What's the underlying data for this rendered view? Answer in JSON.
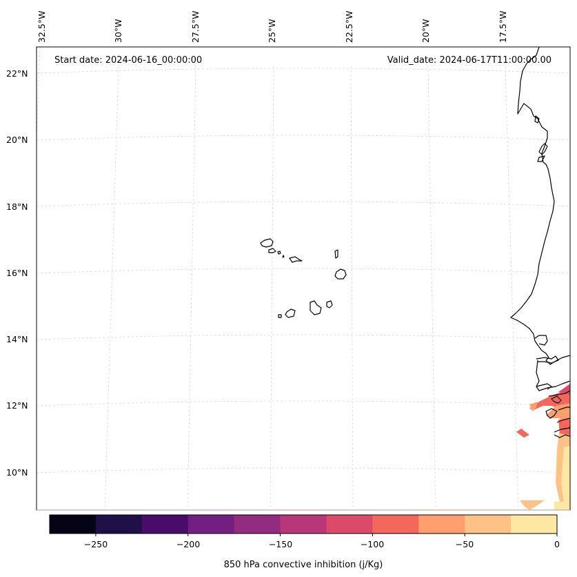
{
  "map": {
    "start_label": "Start date: 2024-06-16_00:00:00",
    "valid_label": "Valid_date: 2024-06-17T11:00:00.00",
    "lon_labels": [
      "32.5°W",
      "30°W",
      "27.5°W",
      "25°W",
      "22.5°W",
      "20°W",
      "17.5°W"
    ],
    "lat_labels": [
      "22°N",
      "20°N",
      "18°N",
      "16°N",
      "14°N",
      "12°N",
      "10°N"
    ],
    "coastline_color": "#000000",
    "gridline_color": "#d0d0d0"
  },
  "colorbar": {
    "title": "850 hPa convective inhibition (j/Kg)",
    "tick_labels": [
      "−250",
      "−200",
      "−150",
      "−100",
      "−50",
      "0"
    ],
    "boundaries": [
      -275,
      -250,
      -225,
      -200,
      -175,
      -150,
      -125,
      -100,
      -75,
      -50,
      -25,
      0
    ],
    "colors": [
      "#050416",
      "#1f1147",
      "#4a0c6b",
      "#721f81",
      "#932b80",
      "#b73779",
      "#dc4a6a",
      "#f3675c",
      "#fe9f6d",
      "#fec287",
      "#fde7a3"
    ]
  }
}
